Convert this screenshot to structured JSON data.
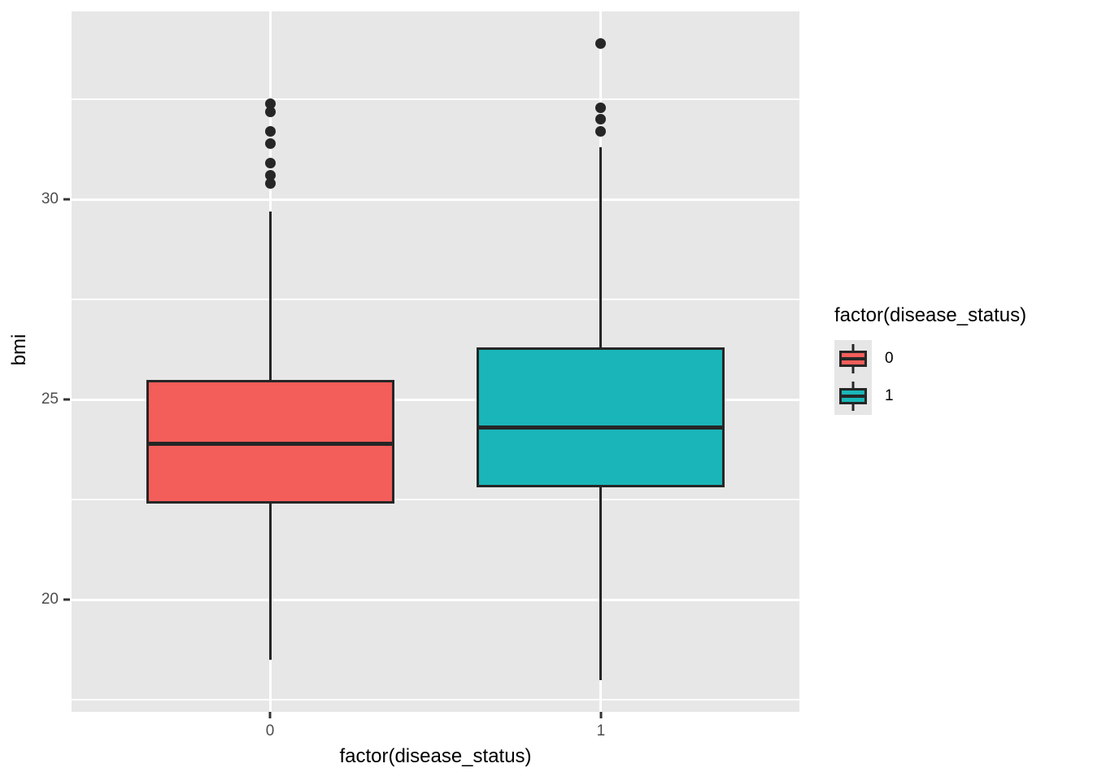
{
  "chart_data": {
    "type": "boxplot",
    "title": "",
    "xlabel": "factor(disease_status)",
    "ylabel": "bmi",
    "legend_title": "factor(disease_status)",
    "legend_position": "right",
    "categories": [
      "0",
      "1"
    ],
    "y_ticks": [
      20,
      25,
      30
    ],
    "y_minor_ticks": [
      17.5,
      22.5,
      27.5,
      32.5
    ],
    "y_domain": [
      17.2,
      34.7
    ],
    "grid": "major-and-minor-white-on-gray",
    "series": [
      {
        "name": "0",
        "fill": "#F45E5A",
        "whisker_low": 18.5,
        "q1": 22.4,
        "median": 23.9,
        "q3": 25.5,
        "whisker_high": 29.7,
        "outliers": [
          30.4,
          30.6,
          30.9,
          31.4,
          31.7,
          32.2,
          32.4
        ]
      },
      {
        "name": "1",
        "fill": "#1AB5B8",
        "whisker_low": 18.0,
        "q1": 22.8,
        "median": 24.3,
        "q3": 26.3,
        "whisker_high": 31.3,
        "outliers": [
          31.7,
          32.0,
          32.3,
          33.9
        ]
      }
    ],
    "colors": {
      "panel_bg": "#E7E7E7",
      "grid": "#FFFFFF",
      "stroke": "#262626",
      "tick_label": "#4D4D4D",
      "title_text": "#000000",
      "legend_key_bg": "#E6E6E6"
    }
  }
}
